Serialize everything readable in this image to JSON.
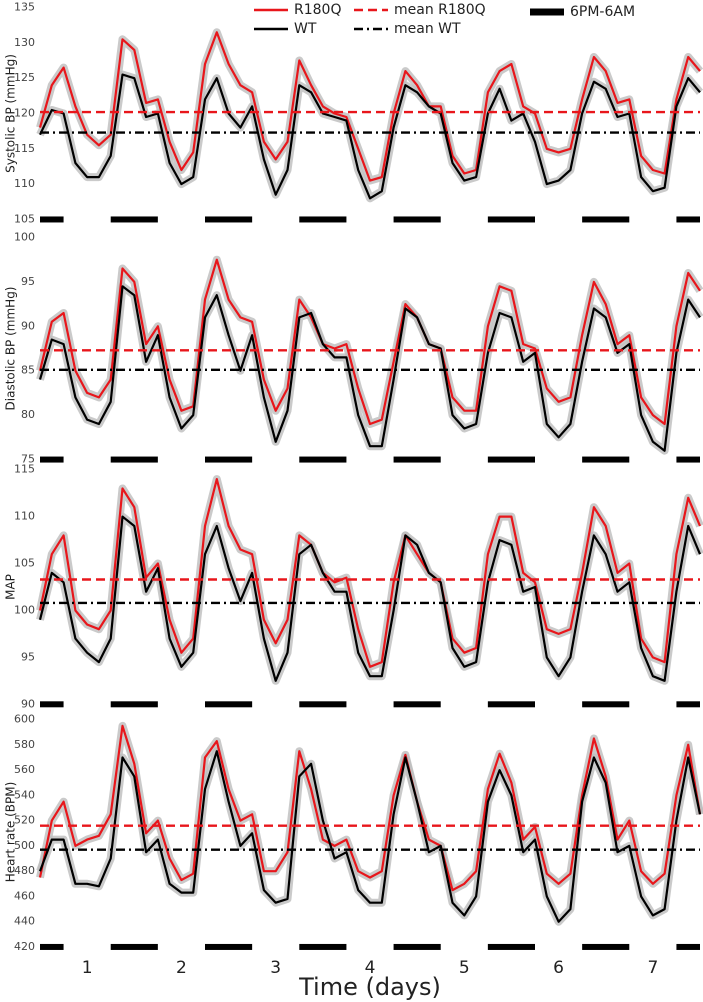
{
  "chart_data": [
    {
      "type": "line",
      "ylabel": "Systolic BP (mmHg)",
      "legend": "top",
      "xlim": [
        0.5,
        7.5
      ],
      "ylim": [
        104.5,
        135.5
      ],
      "yticks": [
        105,
        110,
        115,
        120,
        125,
        130,
        135
      ],
      "x": [
        0.5,
        0.625,
        0.75,
        0.875,
        1,
        1.125,
        1.25,
        1.375,
        1.5,
        1.625,
        1.75,
        1.875,
        2,
        2.125,
        2.25,
        2.375,
        2.5,
        2.625,
        2.75,
        2.875,
        3,
        3.125,
        3.25,
        3.375,
        3.5,
        3.625,
        3.75,
        3.875,
        4,
        4.125,
        4.25,
        4.375,
        4.5,
        4.625,
        4.75,
        4.875,
        5,
        5.125,
        5.25,
        5.375,
        5.5,
        5.625,
        5.75,
        5.875,
        6,
        6.125,
        6.25,
        6.375,
        6.5,
        6.625,
        6.75,
        6.875,
        7,
        7.125,
        7.25,
        7.375,
        7.5
      ],
      "series": [
        {
          "name": "R180Q",
          "color": "#e8161b",
          "values": [
            118,
            124,
            126.5,
            121,
            117,
            115.5,
            117,
            130.5,
            129,
            121.5,
            122,
            116,
            112,
            114.5,
            127,
            131.5,
            127,
            124,
            123,
            116,
            113.5,
            116,
            127.5,
            124,
            121,
            120,
            119.5,
            115,
            110.5,
            111,
            120,
            126,
            124,
            121,
            121,
            114,
            111.5,
            112,
            123,
            126,
            127,
            121,
            120,
            115,
            114.5,
            115,
            122,
            128,
            126,
            121.5,
            122,
            114,
            112,
            111.5,
            122,
            128,
            126
          ]
        },
        {
          "name": "WT",
          "color": "#000000",
          "values": [
            117,
            120.5,
            120,
            113,
            111,
            111,
            114,
            125.5,
            125,
            119.5,
            120,
            113,
            110,
            111,
            122,
            125,
            120,
            118,
            121,
            113.5,
            108.5,
            112,
            124,
            123,
            120,
            119.5,
            119,
            112,
            108,
            109,
            118,
            124,
            123,
            121,
            120,
            113,
            110.5,
            111,
            120,
            123.5,
            119,
            120,
            116,
            110,
            110.5,
            112,
            120,
            124.5,
            123.5,
            119.5,
            120,
            111,
            109,
            109.5,
            121,
            125,
            123
          ]
        }
      ],
      "means": [
        {
          "name": "mean R180Q",
          "color": "#e8161b",
          "style": "dashed",
          "value": 120.2
        },
        {
          "name": "mean WT",
          "color": "#000000",
          "style": "dashdot",
          "value": 117.3
        }
      ],
      "night_bars": {
        "name": "6PM-6AM",
        "y": 105,
        "intervals": [
          [
            0.5,
            0.75
          ],
          [
            1.25,
            1.75
          ],
          [
            2.25,
            2.75
          ],
          [
            3.25,
            3.75
          ],
          [
            4.25,
            4.75
          ],
          [
            5.25,
            5.75
          ],
          [
            6.25,
            6.75
          ],
          [
            7.25,
            7.5
          ]
        ]
      }
    },
    {
      "type": "line",
      "ylabel": "Diastolic BP (mmHg)",
      "xlim": [
        0.5,
        7.5
      ],
      "ylim": [
        74.5,
        100.5
      ],
      "yticks": [
        75,
        80,
        85,
        90,
        95,
        100
      ],
      "x": [
        0.5,
        0.625,
        0.75,
        0.875,
        1,
        1.125,
        1.25,
        1.375,
        1.5,
        1.625,
        1.75,
        1.875,
        2,
        2.125,
        2.25,
        2.375,
        2.5,
        2.625,
        2.75,
        2.875,
        3,
        3.125,
        3.25,
        3.375,
        3.5,
        3.625,
        3.75,
        3.875,
        4,
        4.125,
        4.25,
        4.375,
        4.5,
        4.625,
        4.75,
        4.875,
        5,
        5.125,
        5.25,
        5.375,
        5.5,
        5.625,
        5.75,
        5.875,
        6,
        6.125,
        6.25,
        6.375,
        6.5,
        6.625,
        6.75,
        6.875,
        7,
        7.125,
        7.25,
        7.375,
        7.5
      ],
      "series": [
        {
          "name": "R180Q",
          "color": "#e8161b",
          "values": [
            85,
            90.5,
            91.5,
            85,
            82.5,
            82,
            84,
            96.5,
            95,
            88,
            90,
            84,
            80.5,
            81,
            93,
            97.5,
            93,
            91,
            90.5,
            84,
            80.5,
            83,
            93,
            91,
            88,
            87.5,
            88,
            83,
            79,
            79.5,
            86,
            92.5,
            91,
            88,
            87.5,
            82,
            80.5,
            80.5,
            90,
            94.5,
            94,
            88,
            87.5,
            83,
            81.5,
            82,
            89,
            95,
            92.5,
            88,
            89,
            82,
            80,
            79,
            90,
            96,
            94
          ]
        },
        {
          "name": "WT",
          "color": "#000000",
          "values": [
            84,
            88.5,
            88,
            82,
            79.5,
            79,
            81.5,
            94.5,
            93.5,
            86,
            89,
            82,
            78.5,
            80,
            91,
            93.5,
            89,
            85,
            89,
            82,
            77,
            80.5,
            91,
            91.5,
            88,
            86.5,
            86.5,
            80,
            76.5,
            76.5,
            84,
            92,
            91,
            88,
            87.5,
            80,
            78.5,
            79,
            87,
            91.5,
            91,
            86,
            87,
            79,
            77.5,
            79,
            86,
            92,
            91,
            87,
            88,
            80,
            77,
            76,
            87,
            93,
            91
          ]
        }
      ],
      "means": [
        {
          "name": "mean R180Q",
          "color": "#e8161b",
          "style": "dashed",
          "value": 87.3
        },
        {
          "name": "mean WT",
          "color": "#000000",
          "style": "dashdot",
          "value": 85.1
        }
      ],
      "night_bars": {
        "y": 75,
        "intervals": [
          [
            0.5,
            0.75
          ],
          [
            1.25,
            1.75
          ],
          [
            2.25,
            2.75
          ],
          [
            3.25,
            3.75
          ],
          [
            4.25,
            4.75
          ],
          [
            5.25,
            5.75
          ],
          [
            6.25,
            6.75
          ],
          [
            7.25,
            7.5
          ]
        ]
      }
    },
    {
      "type": "line",
      "ylabel": "MAP",
      "xlim": [
        0.5,
        7.5
      ],
      "ylim": [
        89.5,
        115.5
      ],
      "yticks": [
        90,
        95,
        100,
        105,
        110,
        115
      ],
      "x": [
        0.5,
        0.625,
        0.75,
        0.875,
        1,
        1.125,
        1.25,
        1.375,
        1.5,
        1.625,
        1.75,
        1.875,
        2,
        2.125,
        2.25,
        2.375,
        2.5,
        2.625,
        2.75,
        2.875,
        3,
        3.125,
        3.25,
        3.375,
        3.5,
        3.625,
        3.75,
        3.875,
        4,
        4.125,
        4.25,
        4.375,
        4.5,
        4.625,
        4.75,
        4.875,
        5,
        5.125,
        5.25,
        5.375,
        5.5,
        5.625,
        5.75,
        5.875,
        6,
        6.125,
        6.25,
        6.375,
        6.5,
        6.625,
        6.75,
        6.875,
        7,
        7.125,
        7.25,
        7.375,
        7.5
      ],
      "series": [
        {
          "name": "R180Q",
          "color": "#e8161b",
          "values": [
            100,
            106,
            108,
            100,
            98.5,
            98,
            100,
            113,
            111,
            103.5,
            105,
            99,
            95.5,
            97,
            109,
            114,
            109,
            106.5,
            106,
            99,
            96.5,
            99,
            108,
            107,
            104,
            103,
            103.5,
            98,
            94,
            94.5,
            103,
            108,
            106,
            104,
            103,
            97,
            95.5,
            96,
            106,
            110,
            110,
            104,
            103,
            98,
            97.5,
            98,
            104,
            111,
            109,
            104,
            105,
            97,
            95,
            94.5,
            106,
            112,
            109
          ]
        },
        {
          "name": "WT",
          "color": "#000000",
          "values": [
            99,
            104,
            103,
            97,
            95.5,
            94.5,
            97,
            110,
            109,
            102,
            104.5,
            97,
            94,
            95.5,
            106,
            109,
            104.5,
            101,
            104,
            97,
            92.5,
            95.5,
            106,
            107,
            104,
            102,
            102,
            95.5,
            93,
            93,
            100,
            108,
            107,
            104,
            103,
            96,
            94,
            94.5,
            103,
            107.5,
            107,
            102,
            102.5,
            95,
            93,
            95,
            102,
            108,
            106,
            102,
            103,
            96,
            93,
            92.5,
            102,
            109,
            106
          ]
        }
      ],
      "means": [
        {
          "name": "mean R180Q",
          "color": "#e8161b",
          "style": "dashed",
          "value": 103.3
        },
        {
          "name": "mean WT",
          "color": "#000000",
          "style": "dashdot",
          "value": 100.8
        }
      ],
      "night_bars": {
        "y": 90,
        "intervals": [
          [
            0.5,
            0.75
          ],
          [
            1.25,
            1.75
          ],
          [
            2.25,
            2.75
          ],
          [
            3.25,
            3.75
          ],
          [
            4.25,
            4.75
          ],
          [
            5.25,
            5.75
          ],
          [
            6.25,
            6.75
          ],
          [
            7.25,
            7.5
          ]
        ]
      }
    },
    {
      "type": "line",
      "ylabel": "Heart rate (BPM)",
      "xlabel": "Time (days)",
      "xlim": [
        0.5,
        7.5
      ],
      "xticks": [
        1,
        2,
        3,
        4,
        5,
        6,
        7
      ],
      "ylim": [
        416,
        606
      ],
      "yticks": [
        420,
        440,
        460,
        480,
        500,
        520,
        540,
        560,
        580,
        600
      ],
      "x": [
        0.5,
        0.625,
        0.75,
        0.875,
        1,
        1.125,
        1.25,
        1.375,
        1.5,
        1.625,
        1.75,
        1.875,
        2,
        2.125,
        2.25,
        2.375,
        2.5,
        2.625,
        2.75,
        2.875,
        3,
        3.125,
        3.25,
        3.375,
        3.5,
        3.625,
        3.75,
        3.875,
        4,
        4.125,
        4.25,
        4.375,
        4.5,
        4.625,
        4.75,
        4.875,
        5,
        5.125,
        5.25,
        5.375,
        5.5,
        5.625,
        5.75,
        5.875,
        6,
        6.125,
        6.25,
        6.375,
        6.5,
        6.625,
        6.75,
        6.875,
        7,
        7.125,
        7.25,
        7.375,
        7.5
      ],
      "series": [
        {
          "name": "R180Q",
          "color": "#e8161b",
          "values": [
            475,
            520,
            535,
            500,
            505,
            508,
            525,
            595,
            565,
            510,
            520,
            490,
            473,
            478,
            570,
            583,
            545,
            520,
            525,
            480,
            480,
            495,
            575,
            545,
            505,
            500,
            505,
            480,
            475,
            480,
            540,
            572,
            535,
            505,
            500,
            465,
            470,
            480,
            545,
            573,
            550,
            505,
            515,
            478,
            470,
            478,
            540,
            585,
            555,
            505,
            520,
            480,
            470,
            478,
            540,
            580,
            525
          ]
        },
        {
          "name": "WT",
          "color": "#000000",
          "values": [
            480,
            505,
            505,
            470,
            470,
            468,
            490,
            570,
            555,
            495,
            505,
            470,
            463,
            463,
            545,
            575,
            535,
            500,
            510,
            465,
            455,
            458,
            555,
            565,
            520,
            490,
            495,
            465,
            455,
            455,
            525,
            570,
            535,
            495,
            500,
            455,
            445,
            460,
            535,
            560,
            540,
            495,
            505,
            460,
            440,
            450,
            535,
            570,
            550,
            495,
            500,
            460,
            445,
            450,
            520,
            570,
            525
          ]
        }
      ],
      "means": [
        {
          "name": "mean R180Q",
          "color": "#e8161b",
          "style": "dashed",
          "value": 516
        },
        {
          "name": "mean WT",
          "color": "#000000",
          "style": "dashdot",
          "value": 497
        }
      ],
      "night_bars": {
        "y": 420,
        "intervals": [
          [
            0.5,
            0.75
          ],
          [
            1.25,
            1.75
          ],
          [
            2.25,
            2.75
          ],
          [
            3.25,
            3.75
          ],
          [
            4.25,
            4.75
          ],
          [
            5.25,
            5.75
          ],
          [
            6.25,
            6.75
          ],
          [
            7.25,
            7.5
          ]
        ]
      }
    }
  ]
}
